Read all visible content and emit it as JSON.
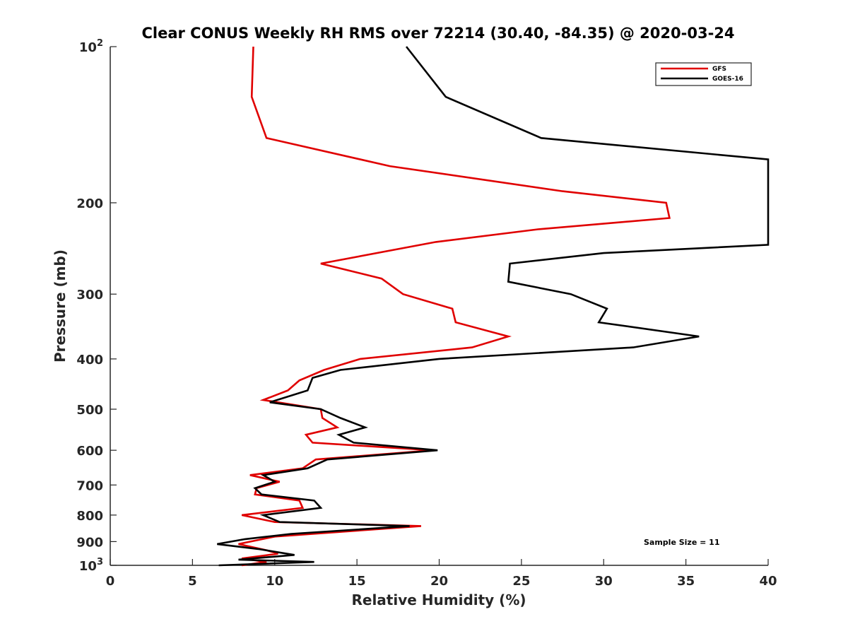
{
  "chart_data": {
    "type": "line",
    "title": "Clear CONUS Weekly RH RMS over 72214 (30.40, -84.35) @ 2020-03-24",
    "xlabel": "Relative Humidity (%)",
    "ylabel": "Pressure (mb)",
    "xlim": [
      0,
      40
    ],
    "ylim": [
      100,
      1000
    ],
    "yscale": "log",
    "y_reversed": true,
    "grid": false,
    "x_ticks": [
      0,
      5,
      10,
      15,
      20,
      25,
      30,
      35,
      40
    ],
    "x_tick_labels": [
      "0",
      "5",
      "10",
      "15",
      "20",
      "25",
      "30",
      "35",
      "40"
    ],
    "y_ticks": [
      100,
      200,
      300,
      400,
      500,
      600,
      700,
      800,
      900,
      1000
    ],
    "y_tick_labels": [
      {
        "base": "10",
        "exp": "2"
      },
      {
        "base": "200",
        "exp": ""
      },
      {
        "base": "300",
        "exp": ""
      },
      {
        "base": "400",
        "exp": ""
      },
      {
        "base": "500",
        "exp": ""
      },
      {
        "base": "600",
        "exp": ""
      },
      {
        "base": "700",
        "exp": ""
      },
      {
        "base": "800",
        "exp": ""
      },
      {
        "base": "900",
        "exp": ""
      },
      {
        "base": "10",
        "exp": "3"
      }
    ],
    "legend_position": "top-right",
    "annotation": "Sample Size = 11",
    "series": [
      {
        "name": "GFS",
        "color": "#e00000",
        "points": [
          [
            8.7,
            100
          ],
          [
            8.6,
            125
          ],
          [
            9.5,
            150
          ],
          [
            17.0,
            170
          ],
          [
            27.5,
            190
          ],
          [
            33.8,
            200
          ],
          [
            34.0,
            214
          ],
          [
            26.0,
            225
          ],
          [
            19.8,
            238
          ],
          [
            12.8,
            262
          ],
          [
            16.5,
            280
          ],
          [
            17.8,
            300
          ],
          [
            20.8,
            320
          ],
          [
            21.0,
            340
          ],
          [
            24.2,
            362
          ],
          [
            22.0,
            380
          ],
          [
            15.2,
            400
          ],
          [
            13.0,
            420
          ],
          [
            11.5,
            440
          ],
          [
            10.8,
            460
          ],
          [
            9.3,
            480
          ],
          [
            12.8,
            500
          ],
          [
            12.9,
            520
          ],
          [
            13.8,
            542
          ],
          [
            11.9,
            560
          ],
          [
            12.3,
            580
          ],
          [
            19.6,
            600
          ],
          [
            12.5,
            625
          ],
          [
            11.7,
            650
          ],
          [
            8.5,
            670
          ],
          [
            10.3,
            690
          ],
          [
            8.9,
            710
          ],
          [
            8.8,
            730
          ],
          [
            11.5,
            750
          ],
          [
            11.7,
            775
          ],
          [
            8.0,
            800
          ],
          [
            10.0,
            825
          ],
          [
            18.9,
            840
          ],
          [
            10.0,
            880
          ],
          [
            7.8,
            910
          ],
          [
            9.5,
            935
          ],
          [
            10.2,
            950
          ],
          [
            8.0,
            970
          ],
          [
            9.5,
            985
          ],
          [
            8.0,
            1000
          ]
        ]
      },
      {
        "name": "GOES-16",
        "color": "#000000",
        "points": [
          [
            18.0,
            100
          ],
          [
            20.4,
            125
          ],
          [
            26.2,
            150
          ],
          [
            40.0,
            165
          ],
          [
            40.0,
            241
          ],
          [
            30.0,
            250
          ],
          [
            24.3,
            262
          ],
          [
            24.2,
            284
          ],
          [
            28.0,
            300
          ],
          [
            30.2,
            320
          ],
          [
            29.7,
            340
          ],
          [
            35.8,
            362
          ],
          [
            31.8,
            380
          ],
          [
            20.0,
            400
          ],
          [
            14.0,
            420
          ],
          [
            12.3,
            435
          ],
          [
            12.0,
            460
          ],
          [
            9.7,
            485
          ],
          [
            12.8,
            500
          ],
          [
            14.0,
            520
          ],
          [
            15.5,
            542
          ],
          [
            13.9,
            560
          ],
          [
            14.8,
            580
          ],
          [
            19.9,
            600
          ],
          [
            13.2,
            625
          ],
          [
            12.0,
            650
          ],
          [
            9.3,
            670
          ],
          [
            10.0,
            690
          ],
          [
            8.8,
            710
          ],
          [
            9.2,
            730
          ],
          [
            12.4,
            750
          ],
          [
            12.8,
            775
          ],
          [
            9.3,
            800
          ],
          [
            10.3,
            825
          ],
          [
            18.2,
            840
          ],
          [
            11.0,
            870
          ],
          [
            8.2,
            890
          ],
          [
            6.5,
            910
          ],
          [
            9.0,
            930
          ],
          [
            11.2,
            955
          ],
          [
            7.8,
            975
          ],
          [
            12.4,
            985
          ],
          [
            6.6,
            1000
          ]
        ]
      }
    ]
  }
}
